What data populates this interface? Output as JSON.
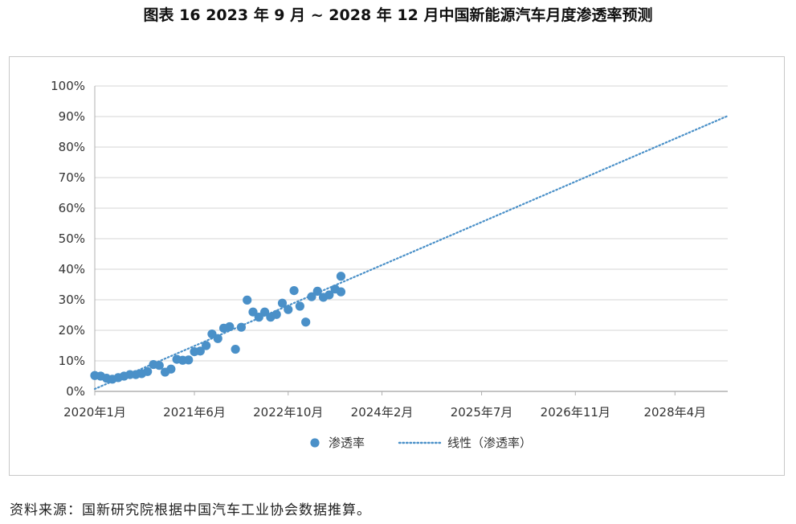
{
  "page": {
    "title": "图表 16  2023 年 9 月 ~ 2028 年 12 月中国新能源汽车月度渗透率预测",
    "source": "资料来源：国新研究院根据中国汽车工业协会数据推算。"
  },
  "chart_data": {
    "type": "scatter",
    "title": "图表 16  2023 年 9 月 ~ 2028 年 12 月中国新能源汽车月度渗透率预测",
    "xlabel": "",
    "ylabel": "",
    "ylim": [
      0,
      100
    ],
    "yticks": [
      "0%",
      "10%",
      "20%",
      "30%",
      "40%",
      "50%",
      "60%",
      "70%",
      "80%",
      "90%",
      "100%"
    ],
    "xlim_month_index": [
      0,
      108
    ],
    "xticks": [
      {
        "label": "2020年1月",
        "month_index": 0
      },
      {
        "label": "2021年6月",
        "month_index": 17
      },
      {
        "label": "2022年10月",
        "month_index": 33
      },
      {
        "label": "2024年2月",
        "month_index": 49
      },
      {
        "label": "2025年7月",
        "month_index": 66
      },
      {
        "label": "2026年11月",
        "month_index": 82
      },
      {
        "label": "2028年4月",
        "month_index": 99
      }
    ],
    "grid": true,
    "legend_position": "bottom",
    "series": [
      {
        "name": "渗透率",
        "style": "markers",
        "color": "#4a90c8",
        "x_month_index": [
          0,
          1,
          2,
          3,
          4,
          5,
          6,
          7,
          8,
          9,
          10,
          11,
          12,
          13,
          14,
          15,
          16,
          17,
          18,
          19,
          20,
          21,
          22,
          23,
          24,
          25,
          26,
          27,
          28,
          29,
          30,
          31,
          32,
          33,
          34,
          35,
          36,
          37,
          38,
          39,
          40,
          41
        ],
        "y": [
          5.2,
          5.0,
          4.3,
          4.0,
          4.5,
          5.0,
          5.5,
          5.5,
          5.8,
          6.5,
          8.8,
          8.5,
          6.3,
          7.3,
          10.5,
          10.2,
          10.3,
          13.0,
          13.2,
          15.0,
          18.8,
          17.3,
          20.7,
          21.2,
          13.8,
          21.0,
          29.9,
          26.0,
          24.3,
          26.0,
          24.3,
          25.2,
          28.9,
          26.8,
          33.0,
          27.9,
          22.7,
          31.0,
          32.8,
          30.8,
          31.6,
          33.5
        ]
      },
      {
        "name": "线性（渗透率）",
        "style": "dotted-line",
        "color": "#4a90c8",
        "x_month_index": [
          0,
          108
        ],
        "y": [
          0.8,
          90.2
        ]
      }
    ],
    "extra_points": [
      {
        "x_month_index": 42,
        "y": 32.6
      },
      {
        "x_month_index": 42,
        "y": 37.7
      }
    ]
  }
}
